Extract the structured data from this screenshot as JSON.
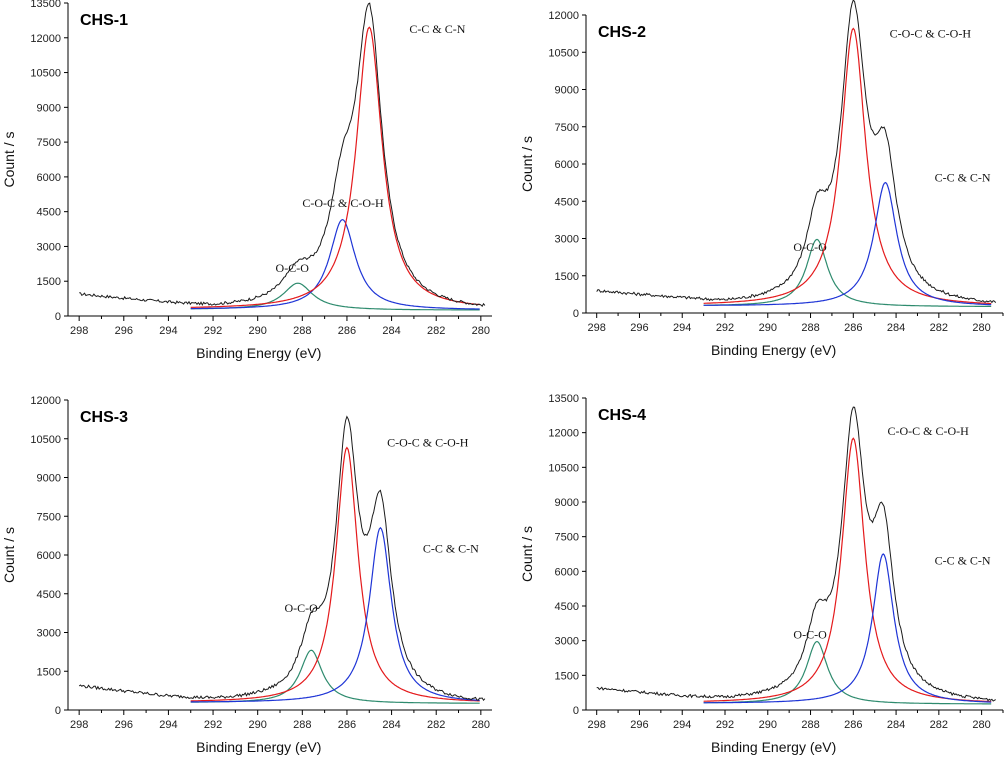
{
  "colors": {
    "envelope": "#1a1a1a",
    "OCO": "#2e8b6e",
    "COC": "#e41a1c",
    "CC": "#1f35d6",
    "axis": "#000000"
  },
  "chart_data": [
    {
      "type": "line",
      "title": "CHS-1",
      "xlabel": "Binding Energy (eV)",
      "ylabel": "Count / s",
      "xlim": [
        298.5,
        279.5
      ],
      "ylim": [
        0,
        13500
      ],
      "xticks": [
        "298",
        "296",
        "294",
        "292",
        "290",
        "288",
        "286",
        "284",
        "282",
        "280"
      ],
      "yticks": [
        "0",
        "1500",
        "3000",
        "4500",
        "6000",
        "7500",
        "9000",
        "10500",
        "12000",
        "13500"
      ],
      "background": [
        [
          298,
          900
        ],
        [
          294,
          480
        ],
        [
          292,
          300
        ],
        [
          288,
          240
        ],
        [
          284,
          200
        ],
        [
          279.5,
          190
        ]
      ],
      "series": [
        {
          "name": "O-C-O",
          "label": "O-C-O",
          "color_key": "OCO",
          "center": 288.2,
          "height": 1150,
          "width": 1.6,
          "label_pos": [
            289.2,
            1900
          ]
        },
        {
          "name": "C-O-C & C-O-H",
          "label": "C-O-C & C-O-H",
          "color_key": "CC",
          "center": 286.2,
          "height": 3900,
          "width": 1.4,
          "label_pos": [
            288.0,
            4700
          ]
        },
        {
          "name": "C-C & C-N",
          "label": "C-C & C-N",
          "color_key": "COC",
          "center": 285.0,
          "height": 12200,
          "width": 1.4,
          "label_pos": [
            283.2,
            12200
          ]
        }
      ]
    },
    {
      "type": "line",
      "title": "CHS-2",
      "xlabel": "Binding Energy (eV)",
      "ylabel": "Count / s",
      "xlim": [
        298.5,
        279
      ],
      "ylim": [
        0,
        12000
      ],
      "xticks": [
        "298",
        "296",
        "294",
        "292",
        "290",
        "288",
        "286",
        "284",
        "282",
        "280"
      ],
      "yticks": [
        "0",
        "1500",
        "3000",
        "4500",
        "6000",
        "7500",
        "9000",
        "10500",
        "12000"
      ],
      "background": [
        [
          298,
          850
        ],
        [
          294,
          500
        ],
        [
          292,
          300
        ],
        [
          288,
          280
        ],
        [
          284,
          250
        ],
        [
          279,
          230
        ]
      ],
      "series": [
        {
          "name": "O-C-O",
          "label": "O-C-O",
          "color_key": "OCO",
          "center": 287.7,
          "height": 2700,
          "width": 1.2,
          "label_pos": [
            288.8,
            2500
          ]
        },
        {
          "name": "C-O-C & C-O-H",
          "label": "C-O-C & C-O-H",
          "color_key": "COC",
          "center": 286.0,
          "height": 11200,
          "width": 1.4,
          "label_pos": [
            284.3,
            11100
          ]
        },
        {
          "name": "C-C & C-N",
          "label": "C-C & C-N",
          "color_key": "CC",
          "center": 284.5,
          "height": 5000,
          "width": 1.3,
          "label_pos": [
            282.2,
            5300
          ]
        }
      ]
    },
    {
      "type": "line",
      "title": "CHS-3",
      "xlabel": "Binding Energy (eV)",
      "ylabel": "Count / s",
      "xlim": [
        298.5,
        279.5
      ],
      "ylim": [
        0,
        12000
      ],
      "xticks": [
        "298",
        "296",
        "294",
        "292",
        "290",
        "288",
        "286",
        "284",
        "282",
        "280"
      ],
      "yticks": [
        "0",
        "1500",
        "3000",
        "4500",
        "6000",
        "7500",
        "9000",
        "10500",
        "12000"
      ],
      "background": [
        [
          298,
          900
        ],
        [
          294,
          450
        ],
        [
          292,
          300
        ],
        [
          288,
          260
        ],
        [
          284,
          200
        ],
        [
          279.5,
          180
        ]
      ],
      "series": [
        {
          "name": "O-C-O",
          "label": "O-C-O",
          "color_key": "OCO",
          "center": 287.6,
          "height": 2050,
          "width": 1.2,
          "label_pos": [
            288.8,
            3800
          ]
        },
        {
          "name": "C-O-C & C-O-H",
          "label": "C-O-C & C-O-H",
          "color_key": "COC",
          "center": 286.0,
          "height": 9900,
          "width": 1.2,
          "label_pos": [
            284.2,
            10200
          ]
        },
        {
          "name": "C-C & C-N",
          "label": "C-C & C-N",
          "color_key": "CC",
          "center": 284.5,
          "height": 6800,
          "width": 1.2,
          "label_pos": [
            282.6,
            6100
          ]
        }
      ]
    },
    {
      "type": "line",
      "title": "CHS-4",
      "xlabel": "Binding Energy (eV)",
      "ylabel": "Count / s",
      "xlim": [
        298.5,
        279
      ],
      "ylim": [
        0,
        13500
      ],
      "xticks": [
        "298",
        "296",
        "294",
        "292",
        "290",
        "288",
        "286",
        "284",
        "282",
        "280"
      ],
      "yticks": [
        "0",
        "1500",
        "3000",
        "4500",
        "6000",
        "7500",
        "9000",
        "10500",
        "12000",
        "13500"
      ],
      "background": [
        [
          298,
          900
        ],
        [
          294,
          500
        ],
        [
          292,
          350
        ],
        [
          288,
          300
        ],
        [
          284,
          250
        ],
        [
          279,
          230
        ]
      ],
      "series": [
        {
          "name": "O-C-O",
          "label": "O-C-O",
          "color_key": "OCO",
          "center": 287.7,
          "height": 2700,
          "width": 1.2,
          "label_pos": [
            288.8,
            3100
          ]
        },
        {
          "name": "C-O-C & C-O-H",
          "label": "C-O-C & C-O-H",
          "color_key": "COC",
          "center": 286.0,
          "height": 11500,
          "width": 1.3,
          "label_pos": [
            284.4,
            11900
          ]
        },
        {
          "name": "C-C & C-N",
          "label": "C-C & C-N",
          "color_key": "CC",
          "center": 284.6,
          "height": 6500,
          "width": 1.2,
          "label_pos": [
            282.2,
            6300
          ]
        }
      ]
    }
  ]
}
